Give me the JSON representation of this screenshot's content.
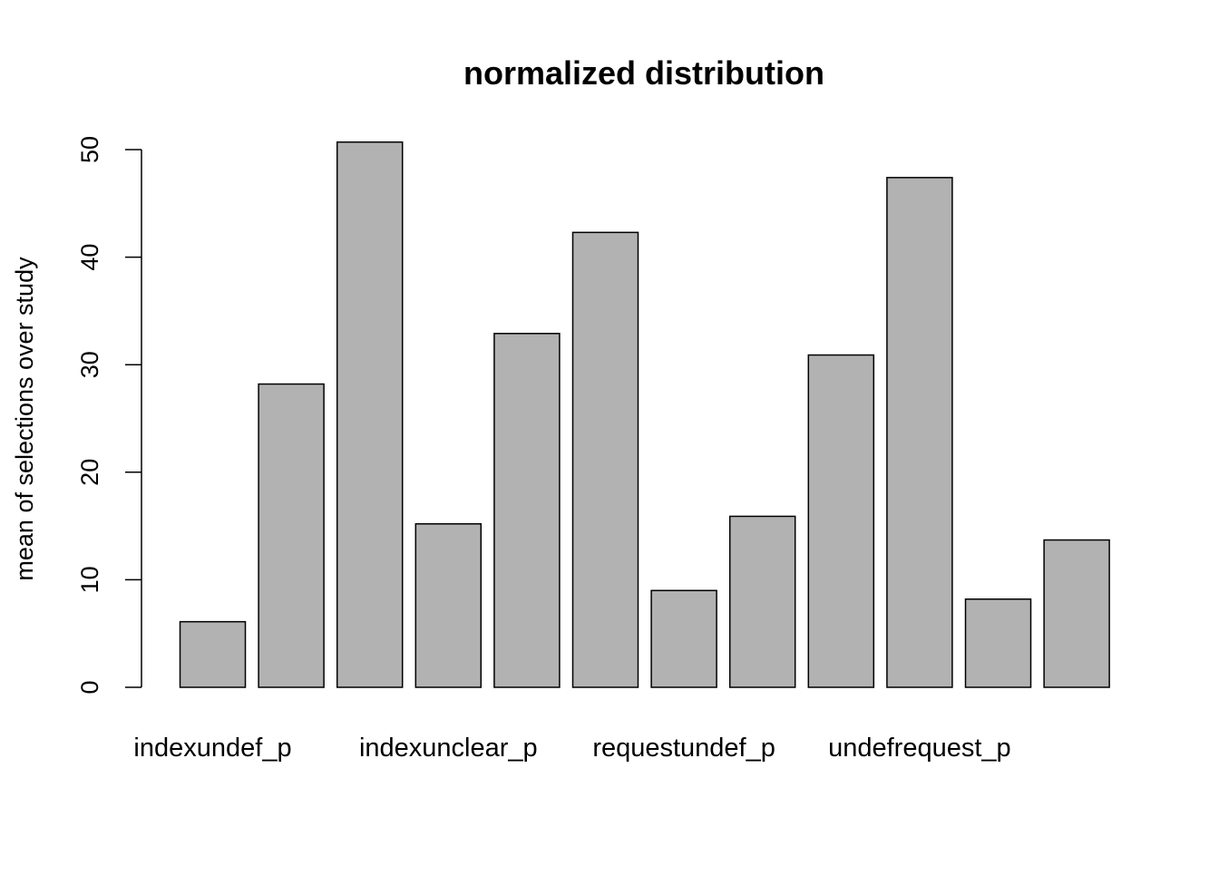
{
  "chart_data": {
    "type": "bar",
    "title": "normalized distribution",
    "xlabel": "",
    "ylabel": "mean of selections over study",
    "ylim": [
      0,
      50
    ],
    "yticks": [
      0,
      10,
      20,
      30,
      40,
      50
    ],
    "bar_color": "#b2b2b2",
    "bar_border_color": "#000000",
    "grid": false,
    "values": [
      6.1,
      28.2,
      50.7,
      15.2,
      32.9,
      42.3,
      9.0,
      15.9,
      30.9,
      47.4,
      8.2,
      13.7
    ],
    "category_labels": [
      {
        "label": "indexundef_p",
        "bar_index": 0
      },
      {
        "label": "indexunclear_p",
        "bar_index": 3
      },
      {
        "label": "requestundef_p",
        "bar_index": 6
      },
      {
        "label": "undefrequest_p",
        "bar_index": 9
      }
    ]
  }
}
